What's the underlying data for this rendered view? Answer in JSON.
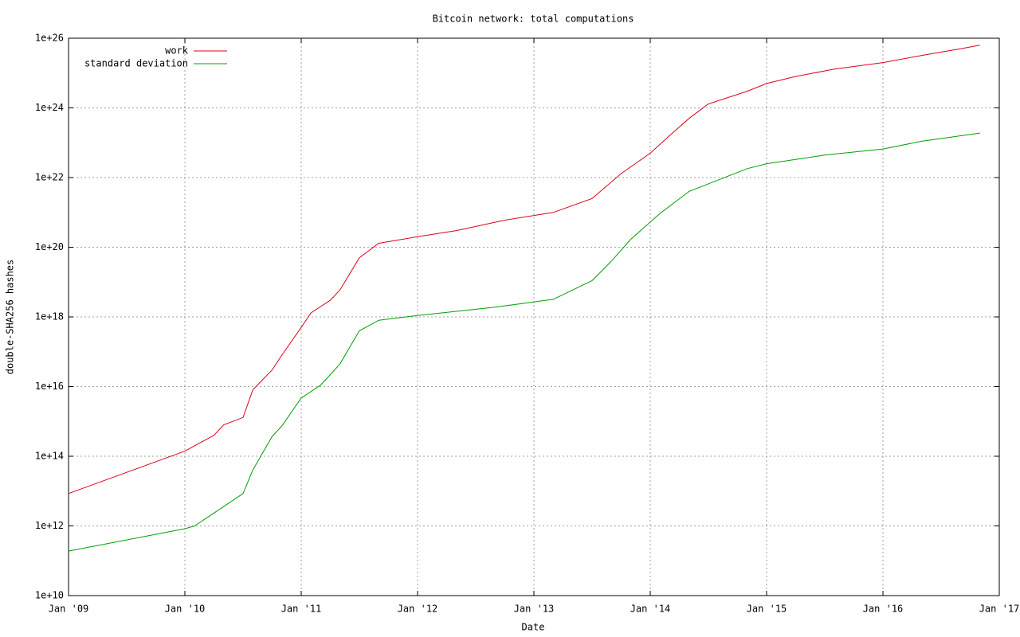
{
  "chart_data": {
    "type": "line",
    "title": "Bitcoin network: total computations",
    "xlabel": "Date",
    "ylabel": "double-SHA256 hashes",
    "log_scale_y": true,
    "grid": true,
    "legend": "top-left",
    "xlim": [
      "2009-01",
      "2017-01"
    ],
    "xticks": [
      {
        "value": "2009-01",
        "label": "Jan '09"
      },
      {
        "value": "2010-01",
        "label": "Jan '10"
      },
      {
        "value": "2011-01",
        "label": "Jan '11"
      },
      {
        "value": "2012-01",
        "label": "Jan '12"
      },
      {
        "value": "2013-01",
        "label": "Jan '13"
      },
      {
        "value": "2014-01",
        "label": "Jan '14"
      },
      {
        "value": "2015-01",
        "label": "Jan '15"
      },
      {
        "value": "2016-01",
        "label": "Jan '16"
      },
      {
        "value": "2017-01",
        "label": "Jan '17"
      }
    ],
    "ylim": [
      10000000000.0,
      1e+26
    ],
    "yticks": [
      {
        "value": 10000000000.0,
        "label": "1e+10"
      },
      {
        "value": 1000000000000.0,
        "label": "1e+12"
      },
      {
        "value": 100000000000000.0,
        "label": "1e+14"
      },
      {
        "value": 1e+16,
        "label": "1e+16"
      },
      {
        "value": 1e+18,
        "label": "1e+18"
      },
      {
        "value": 1e+20,
        "label": "1e+20"
      },
      {
        "value": 1e+22,
        "label": "1e+22"
      },
      {
        "value": 1e+24,
        "label": "1e+24"
      },
      {
        "value": 1e+26,
        "label": "1e+26"
      }
    ],
    "series": [
      {
        "name": "work",
        "color": "#e0001a",
        "x": [
          "2009-01",
          "2010-01",
          "2010-02",
          "2010-04",
          "2010-05",
          "2010-07",
          "2010-08",
          "2010-10",
          "2010-11",
          "2011-01",
          "2011-02",
          "2011-04",
          "2011-05",
          "2011-07",
          "2011-09",
          "2012-01",
          "2012-05",
          "2012-10",
          "2013-03",
          "2013-07",
          "2013-10",
          "2014-01",
          "2014-03",
          "2014-05",
          "2014-07",
          "2014-11",
          "2015-01",
          "2015-04",
          "2015-08",
          "2016-01",
          "2016-05",
          "2016-09",
          "2016-11"
        ],
        "values": [
          8500000000000.0,
          140000000000000.0,
          200000000000000.0,
          400000000000000.0,
          800000000000000.0,
          1300000000000000.0,
          8000000000000000.0,
          3e+16,
          8e+16,
          5e+17,
          1.3e+18,
          3e+18,
          6e+18,
          5e+19,
          1.3e+20,
          2e+20,
          3e+20,
          6e+20,
          1e+21,
          2.5e+21,
          1.3e+22,
          5e+22,
          1.6e+23,
          5e+23,
          1.3e+24,
          3e+24,
          5e+24,
          8e+24,
          1.3e+25,
          2e+25,
          3.2e+25,
          5e+25,
          6.3e+25
        ]
      },
      {
        "name": "standard deviation",
        "color": "#00a000",
        "x": [
          "2009-01",
          "2010-01",
          "2010-02",
          "2010-05",
          "2010-07",
          "2010-08",
          "2010-10",
          "2010-11",
          "2011-01",
          "2011-03",
          "2011-04",
          "2011-05",
          "2011-07",
          "2011-09",
          "2012-01",
          "2012-09",
          "2013-03",
          "2013-07",
          "2013-09",
          "2013-11",
          "2014-02",
          "2014-05",
          "2014-11",
          "2015-01",
          "2015-07",
          "2016-01",
          "2016-05",
          "2016-11"
        ],
        "values": [
          190000000000.0,
          830000000000.0,
          1000000000000.0,
          3600000000000.0,
          8500000000000.0,
          40000000000000.0,
          370000000000000.0,
          740000000000000.0,
          4700000000000000.0,
          1.1e+16,
          2.2e+16,
          4.5e+16,
          4e+17,
          8e+17,
          1.1e+18,
          1.9e+18,
          3.2e+18,
          1.1e+19,
          4e+19,
          1.7e+20,
          9.3e+20,
          4e+21,
          1.8e+22,
          2.5e+22,
          4.4e+22,
          6.6e+22,
          1.1e+23,
          1.9e+23
        ]
      }
    ]
  }
}
